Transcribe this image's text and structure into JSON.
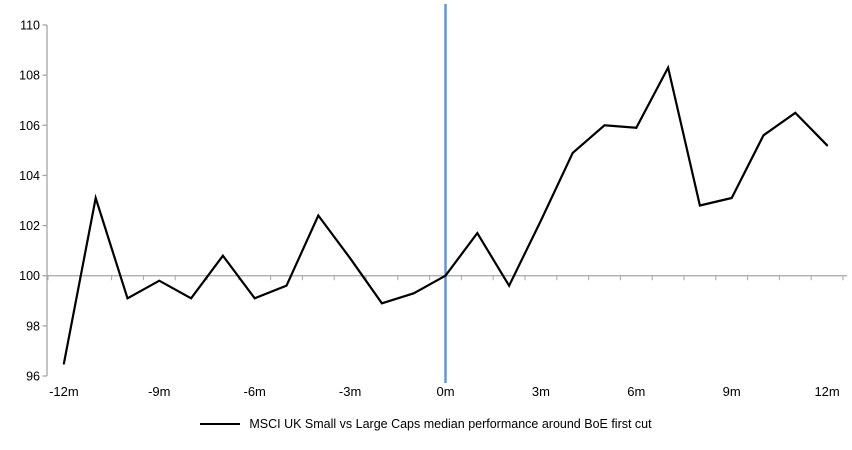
{
  "chart_data": {
    "type": "line",
    "title": "",
    "x_months": [
      -12,
      -11,
      -10,
      -9,
      -8,
      -7,
      -6,
      -5,
      -4,
      -3,
      -2,
      -1,
      0,
      1,
      2,
      3,
      4,
      5,
      6,
      7,
      8,
      9,
      10,
      11,
      12
    ],
    "series": [
      {
        "name": "MSCI UK Small vs Large Caps median performance around BoE first cut",
        "values": [
          96.5,
          103.1,
          99.1,
          99.8,
          99.1,
          100.8,
          99.1,
          99.6,
          102.4,
          100.7,
          98.9,
          99.3,
          100.0,
          101.7,
          99.6,
          102.2,
          104.9,
          106.0,
          105.9,
          108.3,
          102.8,
          103.1,
          105.6,
          106.5,
          105.2
        ]
      }
    ],
    "ylim": [
      96,
      110
    ],
    "yticks": [
      96,
      98,
      100,
      102,
      104,
      106,
      108,
      110
    ],
    "xtick_positions": [
      -12,
      -9,
      -6,
      -3,
      0,
      3,
      6,
      9,
      12
    ],
    "xtick_labels": [
      "-12m",
      "-9m",
      "-6m",
      "-3m",
      "0m",
      "3m",
      "6m",
      "9m",
      "12m"
    ],
    "x_axis_cross": 100,
    "event_line_x": 0,
    "grid": false,
    "legend_position": "bottom",
    "colors": {
      "series": "#000000",
      "event_line": "#5B9BD5",
      "axis": "#A6A6A6",
      "text": "#000000"
    }
  }
}
